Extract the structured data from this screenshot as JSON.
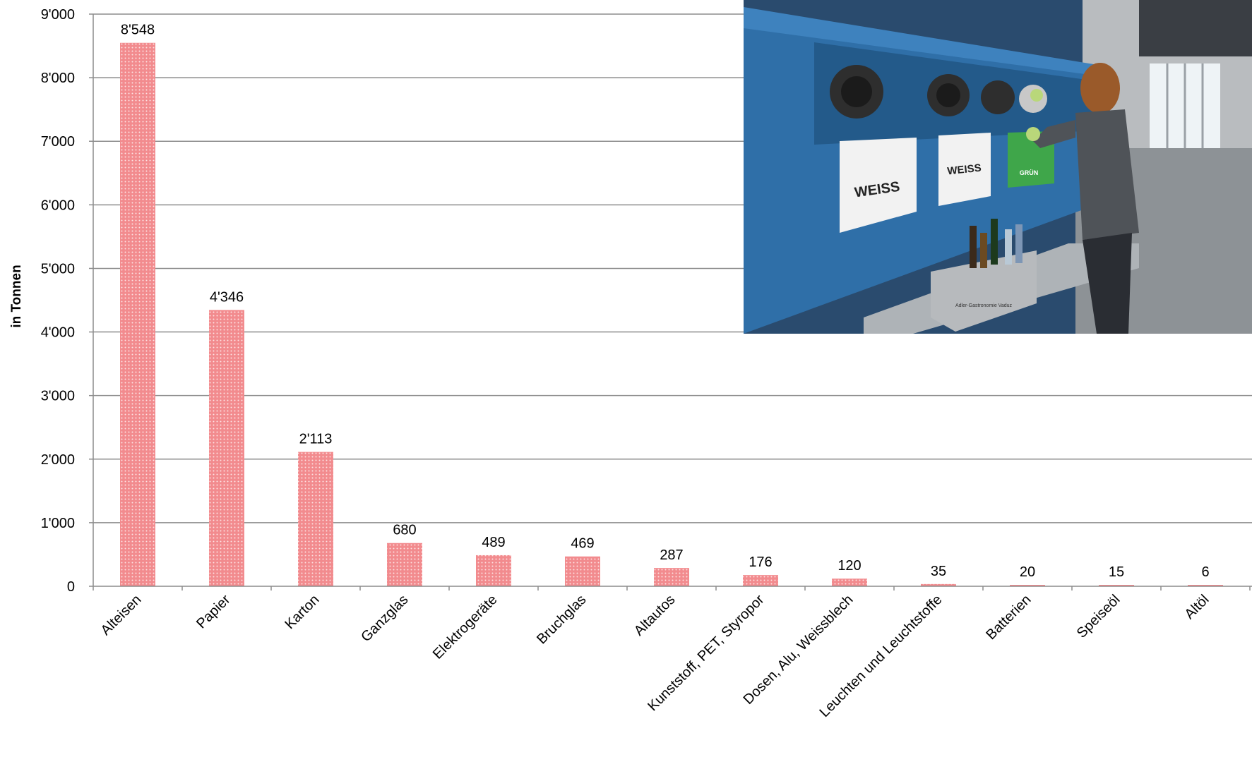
{
  "chart_data": {
    "type": "bar",
    "ylabel": "in Tonnen",
    "xlabel": "",
    "ylim": [
      0,
      9000
    ],
    "ytick_values": [
      0,
      1000,
      2000,
      3000,
      4000,
      5000,
      6000,
      7000,
      8000,
      9000
    ],
    "ytick_labels": [
      "0",
      "1'000",
      "2'000",
      "3'000",
      "4'000",
      "5'000",
      "6'000",
      "7'000",
      "8'000",
      "9'000"
    ],
    "categories": [
      "Alteisen",
      "Papier",
      "Karton",
      "Ganzglas",
      "Elektrogeräte",
      "Bruchglas",
      "Altautos",
      "Kunststoff, PET, Styropor",
      "Dosen, Alu, Weissblech",
      "Leuchten und Leuchtstoffe",
      "Batterien",
      "Speiseöl",
      "Altöl"
    ],
    "values": [
      8548,
      4346,
      2113,
      680,
      489,
      469,
      287,
      176,
      120,
      35,
      20,
      15,
      6
    ],
    "value_labels": [
      "8'548",
      "4'346",
      "2'113",
      "680",
      "489",
      "469",
      "287",
      "176",
      "120",
      "35",
      "20",
      "15",
      "6"
    ],
    "grid": true,
    "legend": "none",
    "bar_color": "#f28b8e"
  },
  "photo": {
    "signs": [
      "WEISS",
      "WEISS",
      "GRÜN"
    ],
    "crate_text": "Adler-Gastronomie Vaduz"
  }
}
